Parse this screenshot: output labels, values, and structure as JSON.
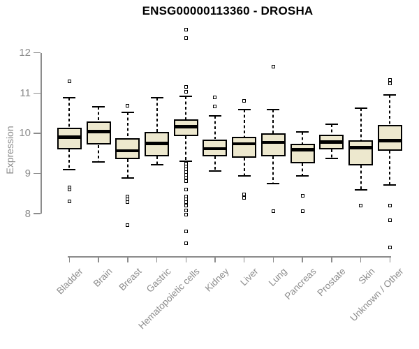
{
  "chart_data": {
    "type": "boxplot",
    "title": "ENSG00000113360 - DROSHA",
    "xlabel": "",
    "ylabel": "Expression",
    "ylim": [
      8,
      12
    ],
    "yticks": [
      8,
      9,
      10,
      11,
      12
    ],
    "grid": false,
    "legend": "none",
    "categories": [
      "Bladder",
      "Brain",
      "Breast",
      "Gastric",
      "Hematopoietic cells",
      "Kidney",
      "Liver",
      "Lung",
      "Pancreas",
      "Prostate",
      "Skin",
      "Unknown / Other"
    ],
    "series": [
      {
        "name": "Bladder",
        "low": 9.1,
        "q1": 9.6,
        "median": 9.9,
        "q3": 10.13,
        "high": 10.88,
        "outliers": [
          11.29,
          8.66,
          8.6,
          8.31
        ]
      },
      {
        "name": "Brain",
        "low": 9.29,
        "q1": 9.71,
        "median": 10.04,
        "q3": 10.29,
        "high": 10.66,
        "outliers": []
      },
      {
        "name": "Breast",
        "low": 8.89,
        "q1": 9.36,
        "median": 9.56,
        "q3": 9.87,
        "high": 10.52,
        "outliers": [
          10.68,
          8.42,
          8.36,
          8.28,
          7.71
        ]
      },
      {
        "name": "Gastric",
        "low": 9.21,
        "q1": 9.42,
        "median": 9.75,
        "q3": 10.03,
        "high": 10.88,
        "outliers": []
      },
      {
        "name": "Hematopoietic cells",
        "low": 9.31,
        "q1": 9.93,
        "median": 10.16,
        "q3": 10.34,
        "high": 10.91,
        "outliers": [
          12.57,
          12.37,
          11.16,
          11.03,
          9.24,
          9.18,
          9.11,
          9.04,
          8.97,
          8.9,
          8.8,
          8.6,
          8.43,
          8.36,
          8.28,
          8.2,
          8.08,
          7.98,
          7.55,
          7.27
        ]
      },
      {
        "name": "Kidney",
        "low": 9.06,
        "q1": 9.42,
        "median": 9.62,
        "q3": 9.85,
        "high": 10.43,
        "outliers": [
          10.9,
          10.66
        ]
      },
      {
        "name": "Liver",
        "low": 8.94,
        "q1": 9.39,
        "median": 9.74,
        "q3": 9.91,
        "high": 10.59,
        "outliers": [
          10.81,
          8.48,
          8.4
        ]
      },
      {
        "name": "Lung",
        "low": 8.74,
        "q1": 9.42,
        "median": 9.77,
        "q3": 9.99,
        "high": 10.58,
        "outliers": [
          11.66,
          8.06
        ]
      },
      {
        "name": "Pancreas",
        "low": 8.94,
        "q1": 9.25,
        "median": 9.59,
        "q3": 9.74,
        "high": 10.04,
        "outliers": [
          8.45,
          8.06
        ]
      },
      {
        "name": "Prostate",
        "low": 9.38,
        "q1": 9.6,
        "median": 9.78,
        "q3": 9.97,
        "high": 10.23,
        "outliers": []
      },
      {
        "name": "Skin",
        "low": 8.6,
        "q1": 9.2,
        "median": 9.64,
        "q3": 9.83,
        "high": 10.63,
        "outliers": [
          8.2
        ]
      },
      {
        "name": "Unknown / Other",
        "low": 8.71,
        "q1": 9.56,
        "median": 9.82,
        "q3": 10.2,
        "high": 10.95,
        "outliers": [
          11.33,
          11.24,
          8.2,
          7.83,
          7.15
        ]
      }
    ]
  },
  "colors": {
    "box_fill": "#EDE8CE",
    "box_border": "#000000",
    "median": "#000000",
    "axis": "#8C8C8C",
    "tick_label": "#8C8C8C",
    "title": "#000000",
    "background": "#FFFFFF"
  }
}
